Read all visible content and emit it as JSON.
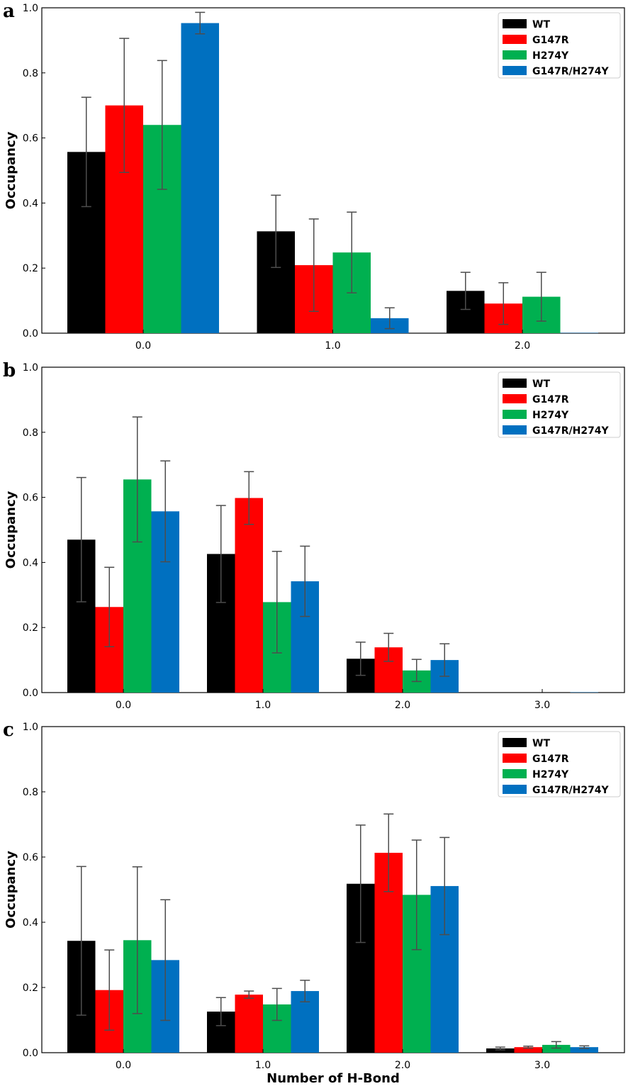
{
  "figure": {
    "xlabel": "Number of H-Bond"
  },
  "chart_data": [
    {
      "panel": "a",
      "type": "bar",
      "ylabel": "Occupancy",
      "ylim": [
        0,
        1.0
      ],
      "yticks": [
        "0.0",
        "0.2",
        "0.4",
        "0.6",
        "0.8",
        "1.0"
      ],
      "categories": [
        "0.0",
        "1.0",
        "2.0"
      ],
      "legend_position": "top-right",
      "series": [
        {
          "name": "WT",
          "color": "#000000",
          "values": [
            0.557,
            0.313,
            0.13
          ],
          "errors": [
            0.168,
            0.111,
            0.057
          ]
        },
        {
          "name": "G147R",
          "color": "#ff0000",
          "values": [
            0.7,
            0.209,
            0.091
          ],
          "errors": [
            0.206,
            0.142,
            0.064
          ]
        },
        {
          "name": "H274Y",
          "color": "#00b050",
          "values": [
            0.64,
            0.248,
            0.112
          ],
          "errors": [
            0.198,
            0.124,
            0.075
          ]
        },
        {
          "name": "G147R/H274Y",
          "color": "#0070c0",
          "values": [
            0.953,
            0.046,
            0.001
          ],
          "errors": [
            0.033,
            0.032,
            0.0
          ]
        }
      ]
    },
    {
      "panel": "b",
      "type": "bar",
      "ylabel": "Occupancy",
      "ylim": [
        0,
        1.0
      ],
      "yticks": [
        "0.0",
        "0.2",
        "0.4",
        "0.6",
        "0.8",
        "1.0"
      ],
      "categories": [
        "0.0",
        "1.0",
        "2.0",
        "3.0"
      ],
      "legend_position": "top-right",
      "series": [
        {
          "name": "WT",
          "color": "#000000",
          "values": [
            0.47,
            0.426,
            0.104,
            0.0
          ],
          "errors": [
            0.191,
            0.149,
            0.051,
            0.0
          ]
        },
        {
          "name": "G147R",
          "color": "#ff0000",
          "values": [
            0.263,
            0.598,
            0.139,
            0.0
          ],
          "errors": [
            0.122,
            0.081,
            0.043,
            0.0
          ]
        },
        {
          "name": "H274Y",
          "color": "#00b050",
          "values": [
            0.655,
            0.278,
            0.068,
            0.0
          ],
          "errors": [
            0.192,
            0.156,
            0.034,
            0.0
          ]
        },
        {
          "name": "G147R/H274Y",
          "color": "#0070c0",
          "values": [
            0.557,
            0.342,
            0.1,
            0.001
          ],
          "errors": [
            0.155,
            0.108,
            0.05,
            0.0
          ]
        }
      ]
    },
    {
      "panel": "c",
      "type": "bar",
      "ylabel": "Occupancy",
      "ylim": [
        0,
        1.0
      ],
      "yticks": [
        "0.0",
        "0.2",
        "0.4",
        "0.6",
        "0.8",
        "1.0"
      ],
      "categories": [
        "0.0",
        "1.0",
        "2.0",
        "3.0"
      ],
      "legend_position": "top-right",
      "series": [
        {
          "name": "WT",
          "color": "#000000",
          "values": [
            0.343,
            0.126,
            0.518,
            0.013
          ],
          "errors": [
            0.228,
            0.043,
            0.18,
            0.004
          ]
        },
        {
          "name": "G147R",
          "color": "#ff0000",
          "values": [
            0.192,
            0.178,
            0.613,
            0.017
          ],
          "errors": [
            0.123,
            0.011,
            0.119,
            0.003
          ]
        },
        {
          "name": "H274Y",
          "color": "#00b050",
          "values": [
            0.345,
            0.148,
            0.484,
            0.024
          ],
          "errors": [
            0.225,
            0.049,
            0.168,
            0.01
          ]
        },
        {
          "name": "G147R/H274Y",
          "color": "#0070c0",
          "values": [
            0.284,
            0.189,
            0.511,
            0.017
          ],
          "errors": [
            0.185,
            0.033,
            0.149,
            0.004
          ]
        }
      ]
    }
  ]
}
